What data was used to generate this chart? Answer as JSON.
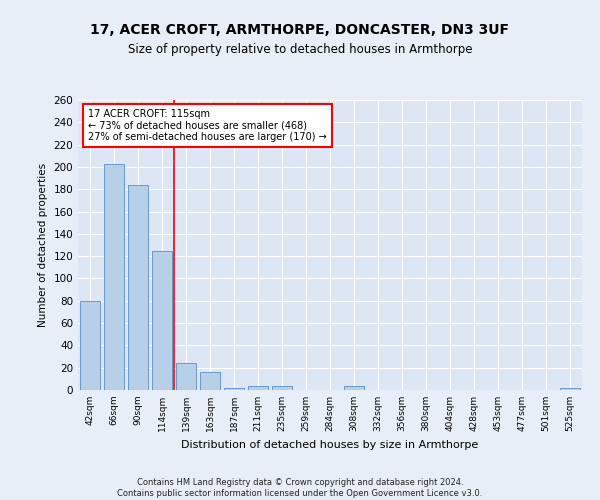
{
  "title1": "17, ACER CROFT, ARMTHORPE, DONCASTER, DN3 3UF",
  "title2": "Size of property relative to detached houses in Armthorpe",
  "xlabel": "Distribution of detached houses by size in Armthorpe",
  "ylabel": "Number of detached properties",
  "categories": [
    "42sqm",
    "66sqm",
    "90sqm",
    "114sqm",
    "139sqm",
    "163sqm",
    "187sqm",
    "211sqm",
    "235sqm",
    "259sqm",
    "284sqm",
    "308sqm",
    "332sqm",
    "356sqm",
    "380sqm",
    "404sqm",
    "428sqm",
    "453sqm",
    "477sqm",
    "501sqm",
    "525sqm"
  ],
  "values": [
    80,
    203,
    184,
    125,
    24,
    16,
    2,
    4,
    4,
    0,
    0,
    4,
    0,
    0,
    0,
    0,
    0,
    0,
    0,
    0,
    2
  ],
  "bar_color": "#b8cfe8",
  "bar_edge_color": "#6699cc",
  "bg_color": "#dce6f5",
  "grid_color": "#ffffff",
  "fig_bg_color": "#e8eef8",
  "red_line_index": 3,
  "annotation_title": "17 ACER CROFT: 115sqm",
  "annotation_line1": "← 73% of detached houses are smaller (468)",
  "annotation_line2": "27% of semi-detached houses are larger (170) →",
  "footer1": "Contains HM Land Registry data © Crown copyright and database right 2024.",
  "footer2": "Contains public sector information licensed under the Open Government Licence v3.0.",
  "ylim": [
    0,
    260
  ],
  "yticks": [
    0,
    20,
    40,
    60,
    80,
    100,
    120,
    140,
    160,
    180,
    200,
    220,
    240,
    260
  ]
}
